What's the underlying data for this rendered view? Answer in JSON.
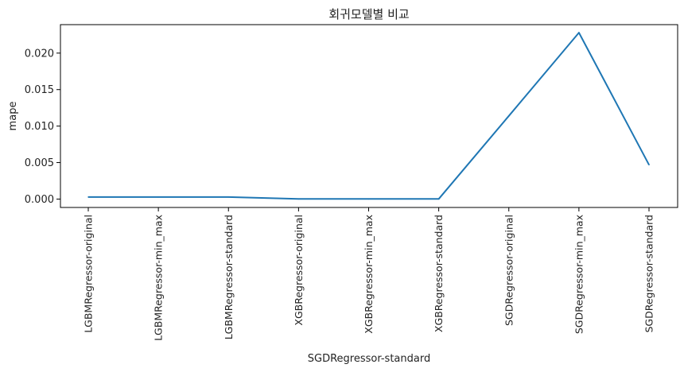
{
  "chart_data": {
    "type": "line",
    "title": "회귀모델별 비교",
    "xlabel": "SGDRegressor-standard",
    "ylabel": "mape",
    "categories": [
      "LGBMRegressor-original",
      "LGBMRegressor-min_max",
      "LGBMRegressor-standard",
      "XGBRegressor-original",
      "XGBRegressor-min_max",
      "XGBRegressor-standard",
      "SGDRegressor-original",
      "SGDRegressor-min_max",
      "SGDRegressor-standard"
    ],
    "series": [
      {
        "values": [
          0.00028,
          0.00028,
          0.00028,
          1e-05,
          1e-05,
          1e-05,
          0.0114,
          0.0228,
          0.0047
        ]
      }
    ],
    "ylim": [
      -0.00115,
      0.0239
    ],
    "yticks": [
      0.0,
      0.005,
      0.01,
      0.015,
      0.02
    ],
    "ytick_labels": [
      "0.000",
      "0.005",
      "0.010",
      "0.015",
      "0.020"
    ],
    "line_color": "#1f77b4",
    "grid": false,
    "legend": "none"
  }
}
